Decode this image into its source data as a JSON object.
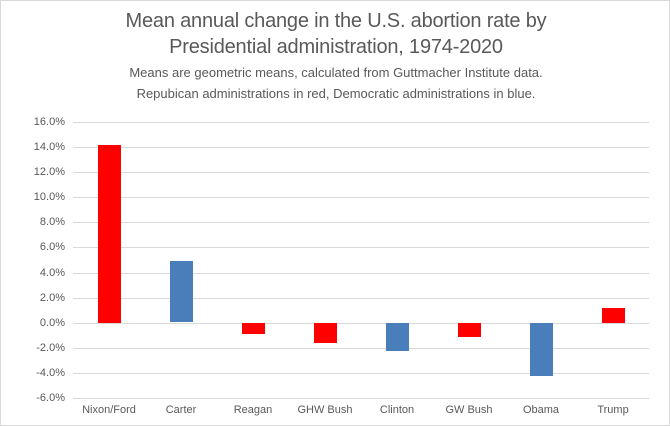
{
  "header": {
    "title_lines": [
      "Mean annual change in the U.S. abortion rate by",
      "Presidential administration, 1974-2020"
    ],
    "subtitle_lines": [
      "Means are geometric means, calculated from Guttmacher Institute data.",
      "Repubican administrations in red, Democratic administrations in blue."
    ]
  },
  "chart_data": {
    "type": "bar",
    "title": "Mean annual change in the U.S. abortion rate by Presidential administration, 1974-2020",
    "subtitle": "Means are geometric means, calculated from Guttmacher Institute data. Repubican administrations in red, Democratic administrations in blue.",
    "categories": [
      "Nixon/Ford",
      "Carter",
      "Reagan",
      "GHW Bush",
      "Clinton",
      "GW Bush",
      "Obama",
      "Trump"
    ],
    "values_pct": [
      14.2,
      4.9,
      -0.9,
      -1.6,
      -2.2,
      -1.1,
      -4.2,
      1.2
    ],
    "parties": [
      "republican",
      "democratic",
      "republican",
      "republican",
      "democratic",
      "republican",
      "democratic",
      "republican"
    ],
    "party_colors": {
      "republican": "#ff0000",
      "democratic": "#4a7ebb"
    },
    "unit": "%",
    "xlabel": "",
    "ylabel": "",
    "ylim": [
      -6,
      16
    ],
    "ytick_labels": [
      "16.0%",
      "14.0%",
      "12.0%",
      "10.0%",
      "8.0%",
      "6.0%",
      "4.0%",
      "2.0%",
      "0.0%",
      "-2.0%",
      "-4.0%",
      "-6.0%"
    ],
    "grid": true,
    "legend": "none",
    "colors": {
      "text": "#595959",
      "gridline": "#d9d9d9",
      "background": "#ffffff"
    }
  }
}
